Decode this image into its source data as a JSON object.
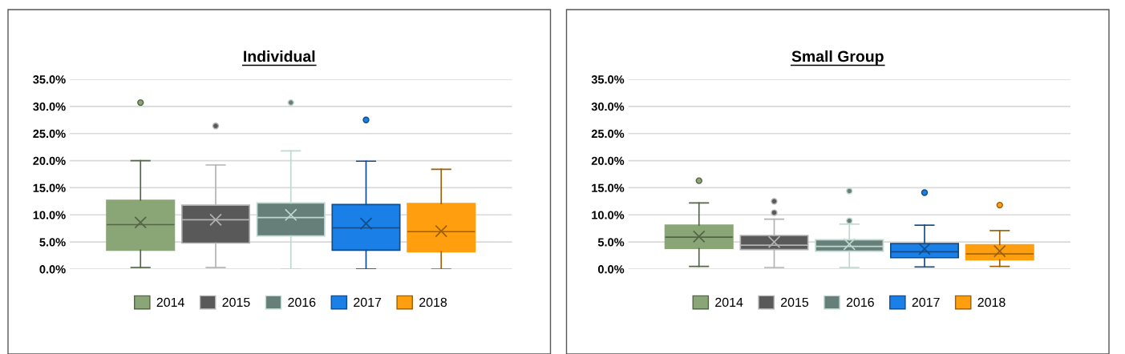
{
  "chart_data": [
    {
      "type": "box",
      "title": "Individual",
      "categories": [
        null
      ],
      "ylim": [
        0,
        35
      ],
      "yticks": [
        {
          "value": 0,
          "label": "0.0%"
        },
        {
          "value": 5,
          "label": "5.0%"
        },
        {
          "value": 10,
          "label": "10.0%"
        },
        {
          "value": 15,
          "label": "15.0%"
        },
        {
          "value": 20,
          "label": "20.0%"
        },
        {
          "value": 25,
          "label": "25.0%"
        },
        {
          "value": 30,
          "label": "30.0%"
        },
        {
          "value": 35,
          "label": "35.0%"
        }
      ],
      "grid": "y",
      "legend": "bottom",
      "marker": "cross",
      "series": [
        {
          "name": "2014",
          "color": "#8aa676",
          "boxes": [
            {
              "low": 0.3,
              "q1": 3.5,
              "median": 8.2,
              "q3": 12.7,
              "high": 20.0,
              "mean": 8.6,
              "outliers": [
                30.7
              ]
            }
          ]
        },
        {
          "name": "2015",
          "color": "#595959",
          "boxes": [
            {
              "low": 0.3,
              "q1": 4.8,
              "median": 9.1,
              "q3": 11.8,
              "high": 19.2,
              "mean": 9.1,
              "outliers": [
                26.4
              ]
            }
          ]
        },
        {
          "name": "2016",
          "color": "#667f78",
          "boxes": [
            {
              "low": 0,
              "q1": 6.1,
              "median": 9.5,
              "q3": 12.2,
              "high": 21.8,
              "mean": 10.0,
              "outliers": [
                30.7
              ]
            }
          ]
        },
        {
          "name": "2017",
          "color": "#1a7fe6",
          "boxes": [
            {
              "low": 0,
              "q1": 3.5,
              "median": 7.6,
              "q3": 11.9,
              "high": 19.9,
              "mean": 8.4,
              "outliers": [
                27.5
              ]
            }
          ]
        },
        {
          "name": "2018",
          "color": "#ff9f0f",
          "boxes": [
            {
              "low": 0,
              "q1": 3.2,
              "median": 6.9,
              "q3": 12.1,
              "high": 18.4,
              "mean": 7.0
            }
          ]
        }
      ]
    },
    {
      "type": "box",
      "title": "Small Group",
      "categories": [
        null
      ],
      "ylim": [
        0,
        35
      ],
      "yticks": [
        {
          "value": 0,
          "label": "0.0%"
        },
        {
          "value": 5,
          "label": "5.0%"
        },
        {
          "value": 10,
          "label": "10.0%"
        },
        {
          "value": 15,
          "label": "15.0%"
        },
        {
          "value": 20,
          "label": "20.0%"
        },
        {
          "value": 25,
          "label": "25.0%"
        },
        {
          "value": 30,
          "label": "30.0%"
        },
        {
          "value": 35,
          "label": "35.0%"
        }
      ],
      "grid": "y",
      "legend": "bottom",
      "marker": "cross",
      "series": [
        {
          "name": "2014",
          "color": "#8aa676",
          "boxes": [
            {
              "low": 0.5,
              "q1": 3.8,
              "median": 5.9,
              "q3": 8.1,
              "high": 12.2,
              "mean": 6.0,
              "outliers": [
                16.3
              ]
            }
          ]
        },
        {
          "name": "2015",
          "color": "#595959",
          "boxes": [
            {
              "low": 0.3,
              "q1": 3.6,
              "median": 4.4,
              "q3": 6.2,
              "high": 9.2,
              "mean": 5.0,
              "outliers": [
                12.5,
                10.4
              ]
            }
          ]
        },
        {
          "name": "2016",
          "color": "#667f78",
          "boxes": [
            {
              "low": 0.3,
              "q1": 3.3,
              "median": 4.2,
              "q3": 5.4,
              "high": 8.3,
              "mean": 4.6,
              "outliers": [
                14.4,
                8.9
              ]
            }
          ]
        },
        {
          "name": "2017",
          "color": "#1a7fe6",
          "boxes": [
            {
              "low": 0.4,
              "q1": 2.1,
              "median": 3.2,
              "q3": 4.7,
              "high": 8.1,
              "mean": 3.7,
              "outliers": [
                14.1
              ]
            }
          ]
        },
        {
          "name": "2018",
          "color": "#ff9f0f",
          "boxes": [
            {
              "low": 0.5,
              "q1": 1.7,
              "median": 2.8,
              "q3": 4.5,
              "high": 7.1,
              "mean": 3.3,
              "outliers": [
                11.8
              ]
            }
          ]
        }
      ]
    }
  ]
}
